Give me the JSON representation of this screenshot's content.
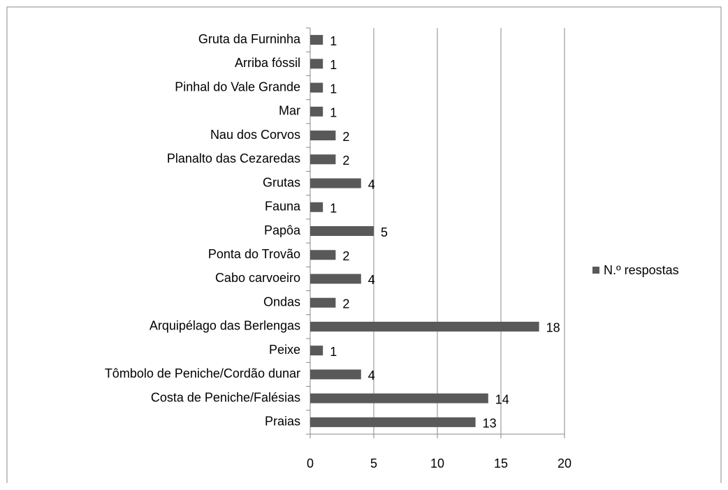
{
  "chart_data": {
    "type": "bar",
    "orientation": "horizontal",
    "categories": [
      "Gruta da Furninha",
      "Arriba fóssil",
      "Pinhal do Vale Grande",
      "Mar",
      "Nau dos Corvos",
      "Planalto das Cezaredas",
      "Grutas",
      "Fauna",
      "Papôa",
      "Ponta do Trovão",
      "Cabo carvoeiro",
      "Ondas",
      "Arquipélago das Berlengas",
      "Peixe",
      "Tômbolo de Peniche/Cordão dunar",
      "Costa de Peniche/Falésias",
      "Praias"
    ],
    "series": [
      {
        "name": "N.º respostas",
        "color": "#595959",
        "values": [
          1,
          1,
          1,
          1,
          2,
          2,
          4,
          1,
          5,
          2,
          4,
          2,
          18,
          1,
          4,
          14,
          13
        ]
      }
    ],
    "xlim": [
      0,
      20
    ],
    "xticks": [
      0,
      5,
      10,
      15,
      20
    ],
    "grid": true,
    "legend": "right"
  }
}
